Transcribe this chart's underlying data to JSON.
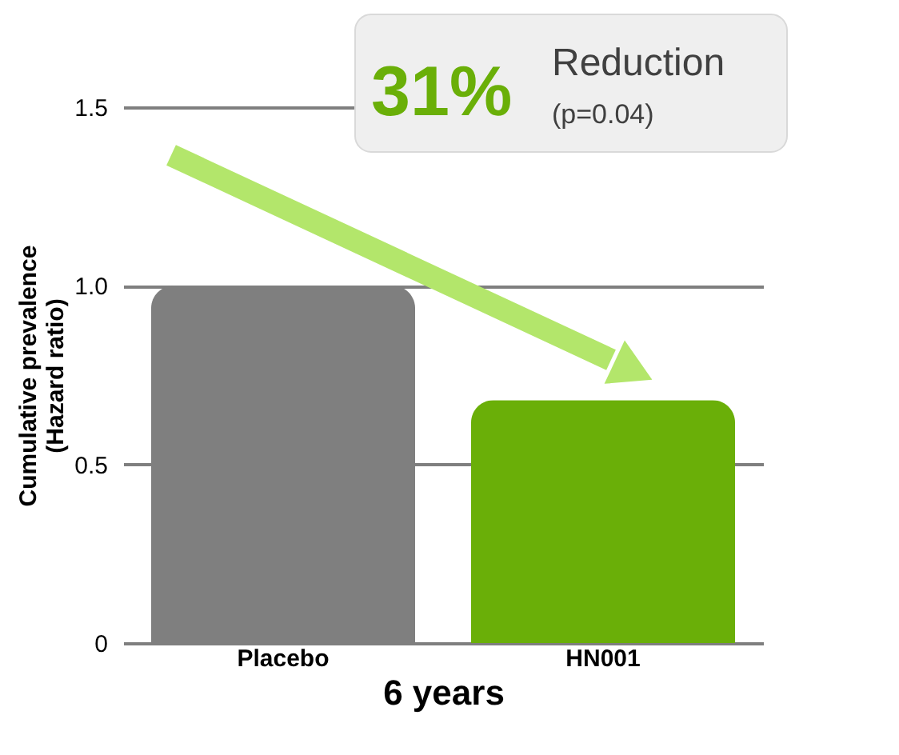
{
  "chart_data": {
    "type": "bar",
    "categories": [
      "Placebo",
      "HN001"
    ],
    "values": [
      1.0,
      0.68
    ],
    "colors": [
      "#7f7f7f",
      "#6aaf08"
    ],
    "xlabel": "6 years",
    "ylabel": "Cumulative prevalence\n(Hazard ratio)",
    "ylim": [
      0,
      1.5
    ],
    "yticks": [
      0,
      0.5,
      {
        "value": 1.0,
        "label": "1.0"
      },
      1.5
    ],
    "grid": "y",
    "annotations": [
      "31%",
      "Reduction",
      "(p=0.04)"
    ]
  }
}
